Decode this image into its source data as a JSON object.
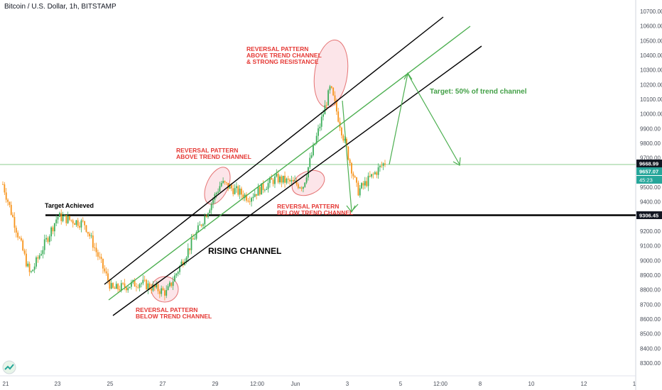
{
  "header": {
    "symbol_line": "Bitcoin / U.S. Dollar, 1h, BITSTAMP"
  },
  "colors": {
    "up_candle": "#3cae5a",
    "down_candle": "#f7931a",
    "channel": "#000000",
    "midline": "#4caf50",
    "annotation_red": "#e53935",
    "ellipse_fill": "#f8c6cf",
    "price_tag_bg": "#131722",
    "price_tag_green": "#26a69a"
  },
  "chart_data": {
    "type": "candlestick",
    "title": "Bitcoin / U.S. Dollar, 1h, BITSTAMP",
    "ylim": [
      8300,
      10800
    ],
    "x_ticks": [
      "21",
      "23",
      "25",
      "27",
      "29",
      "12:00",
      "Jun",
      "3",
      "5",
      "12:00",
      "8",
      "10",
      "12",
      "1"
    ],
    "y_ticks": [
      "10700.00",
      "10600.00",
      "10500.00",
      "10400.00",
      "10300.00",
      "10200.00",
      "10100.00",
      "10000.00",
      "9900.00",
      "9800.00",
      "9700.00",
      "9600.00",
      "9500.00",
      "9400.00",
      "9300.00",
      "9200.00",
      "9100.00",
      "9000.00",
      "8900.00",
      "8800.00",
      "8700.00",
      "8600.00",
      "8500.00",
      "8400.00",
      "8300.00"
    ],
    "price_tags": [
      "9668.99",
      "9657.07",
      "45:23",
      "9306.45"
    ],
    "levels": {
      "target_achieved": 9306.45,
      "target": 9668.99
    },
    "annotations": [
      {
        "id": "rev1",
        "lines": [
          "REVERSAL PATTERN",
          "ABOVE TREND CHANNEL",
          "& STRONG RESISTANCE"
        ]
      },
      {
        "id": "rev2",
        "lines": [
          "REVERSAL PATTERN",
          "ABOVE TREND CHANNEL"
        ]
      },
      {
        "id": "rev3",
        "lines": [
          "REVERSAL PATTERN",
          "BELOW TREND CHANNEL"
        ]
      },
      {
        "id": "rev4",
        "lines": [
          "REVERSAL PATTERN",
          "BELOW TREND CHANNEL"
        ]
      },
      {
        "id": "target_achieved",
        "lines": [
          "Target Achieved"
        ]
      },
      {
        "id": "rising",
        "lines": [
          "RISING CHANNEL"
        ]
      },
      {
        "id": "target_text",
        "lines": [
          "Target: 50% of trend channel"
        ]
      }
    ],
    "series_anchors": {
      "x": [
        "21",
        "22",
        "23",
        "24",
        "25",
        "26",
        "27",
        "28",
        "29",
        "30",
        "31",
        "Jun",
        "2",
        "3",
        "4"
      ],
      "close": [
        9520,
        8900,
        9300,
        9250,
        8800,
        8850,
        8780,
        9150,
        9530,
        9430,
        9560,
        9510,
        10180,
        9470,
        9670
      ]
    }
  }
}
